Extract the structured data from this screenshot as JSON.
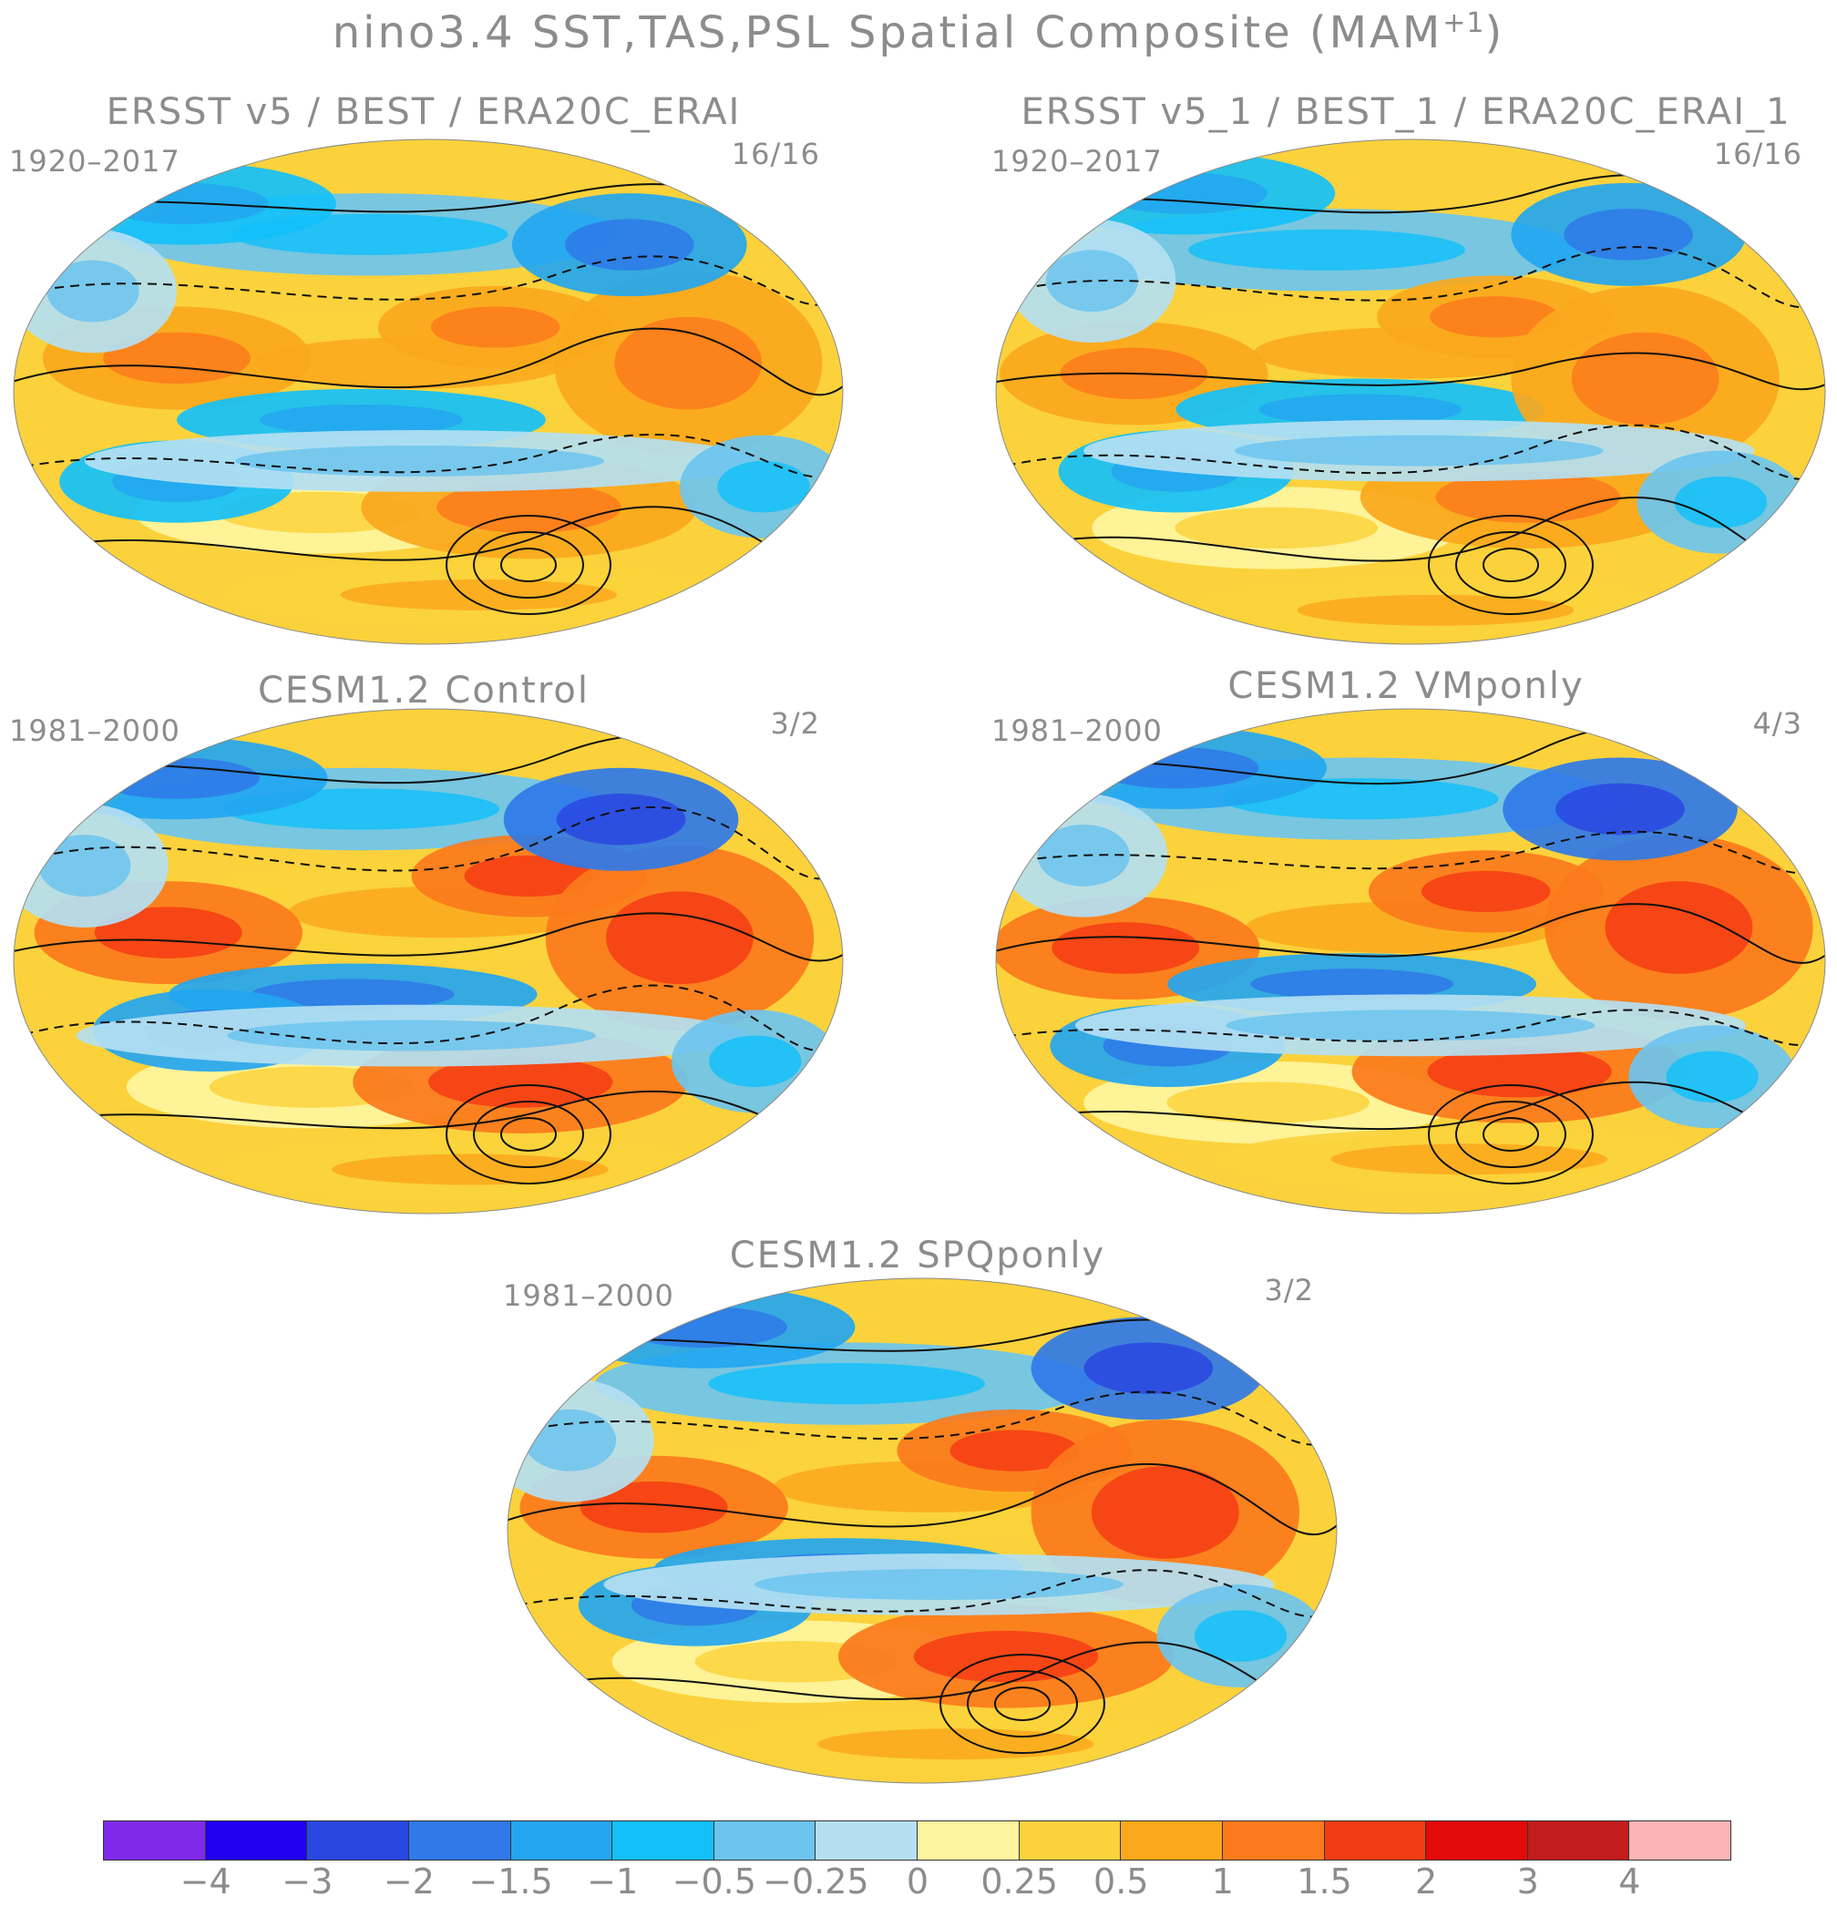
{
  "figure": {
    "title_main": "nino3.4 SST,TAS,PSL Spatial Composite (MAM",
    "title_sup": "+1",
    "title_close": ")"
  },
  "panels": [
    {
      "title": "ERSST v5 / BEST / ERA20C_ERAI",
      "period": "1920–2017",
      "count": "16/16"
    },
    {
      "title": "ERSST v5_1 / BEST_1 / ERA20C_ERAI_1",
      "period": "1920–2017",
      "count": "16/16"
    },
    {
      "title": "CESM1.2 Control",
      "period": "1981–2000",
      "count": "3/2"
    },
    {
      "title": "CESM1.2 VMponly",
      "period": "1981–2000",
      "count": "4/3"
    },
    {
      "title": "CESM1.2 SPQponly",
      "period": "1981–2000",
      "count": "3/2"
    }
  ],
  "colorbar": {
    "colors": [
      "#7f2aea",
      "#1f00f0",
      "#2a47e0",
      "#2f79e8",
      "#23a6f0",
      "#14c0f8",
      "#6cc4ef",
      "#b4dff2",
      "#fff5a0",
      "#fbd23c",
      "#faa81c",
      "#fb7a1c",
      "#f43c14",
      "#e20a0a",
      "#c21c1c",
      "#fbb4b4"
    ],
    "labels": [
      "−4",
      "−3",
      "−2",
      "−1.5",
      "−1",
      "−0.5",
      "−0.25",
      "0",
      "0.25",
      "0.5",
      "1",
      "1.5",
      "2",
      "3",
      "4"
    ]
  }
}
